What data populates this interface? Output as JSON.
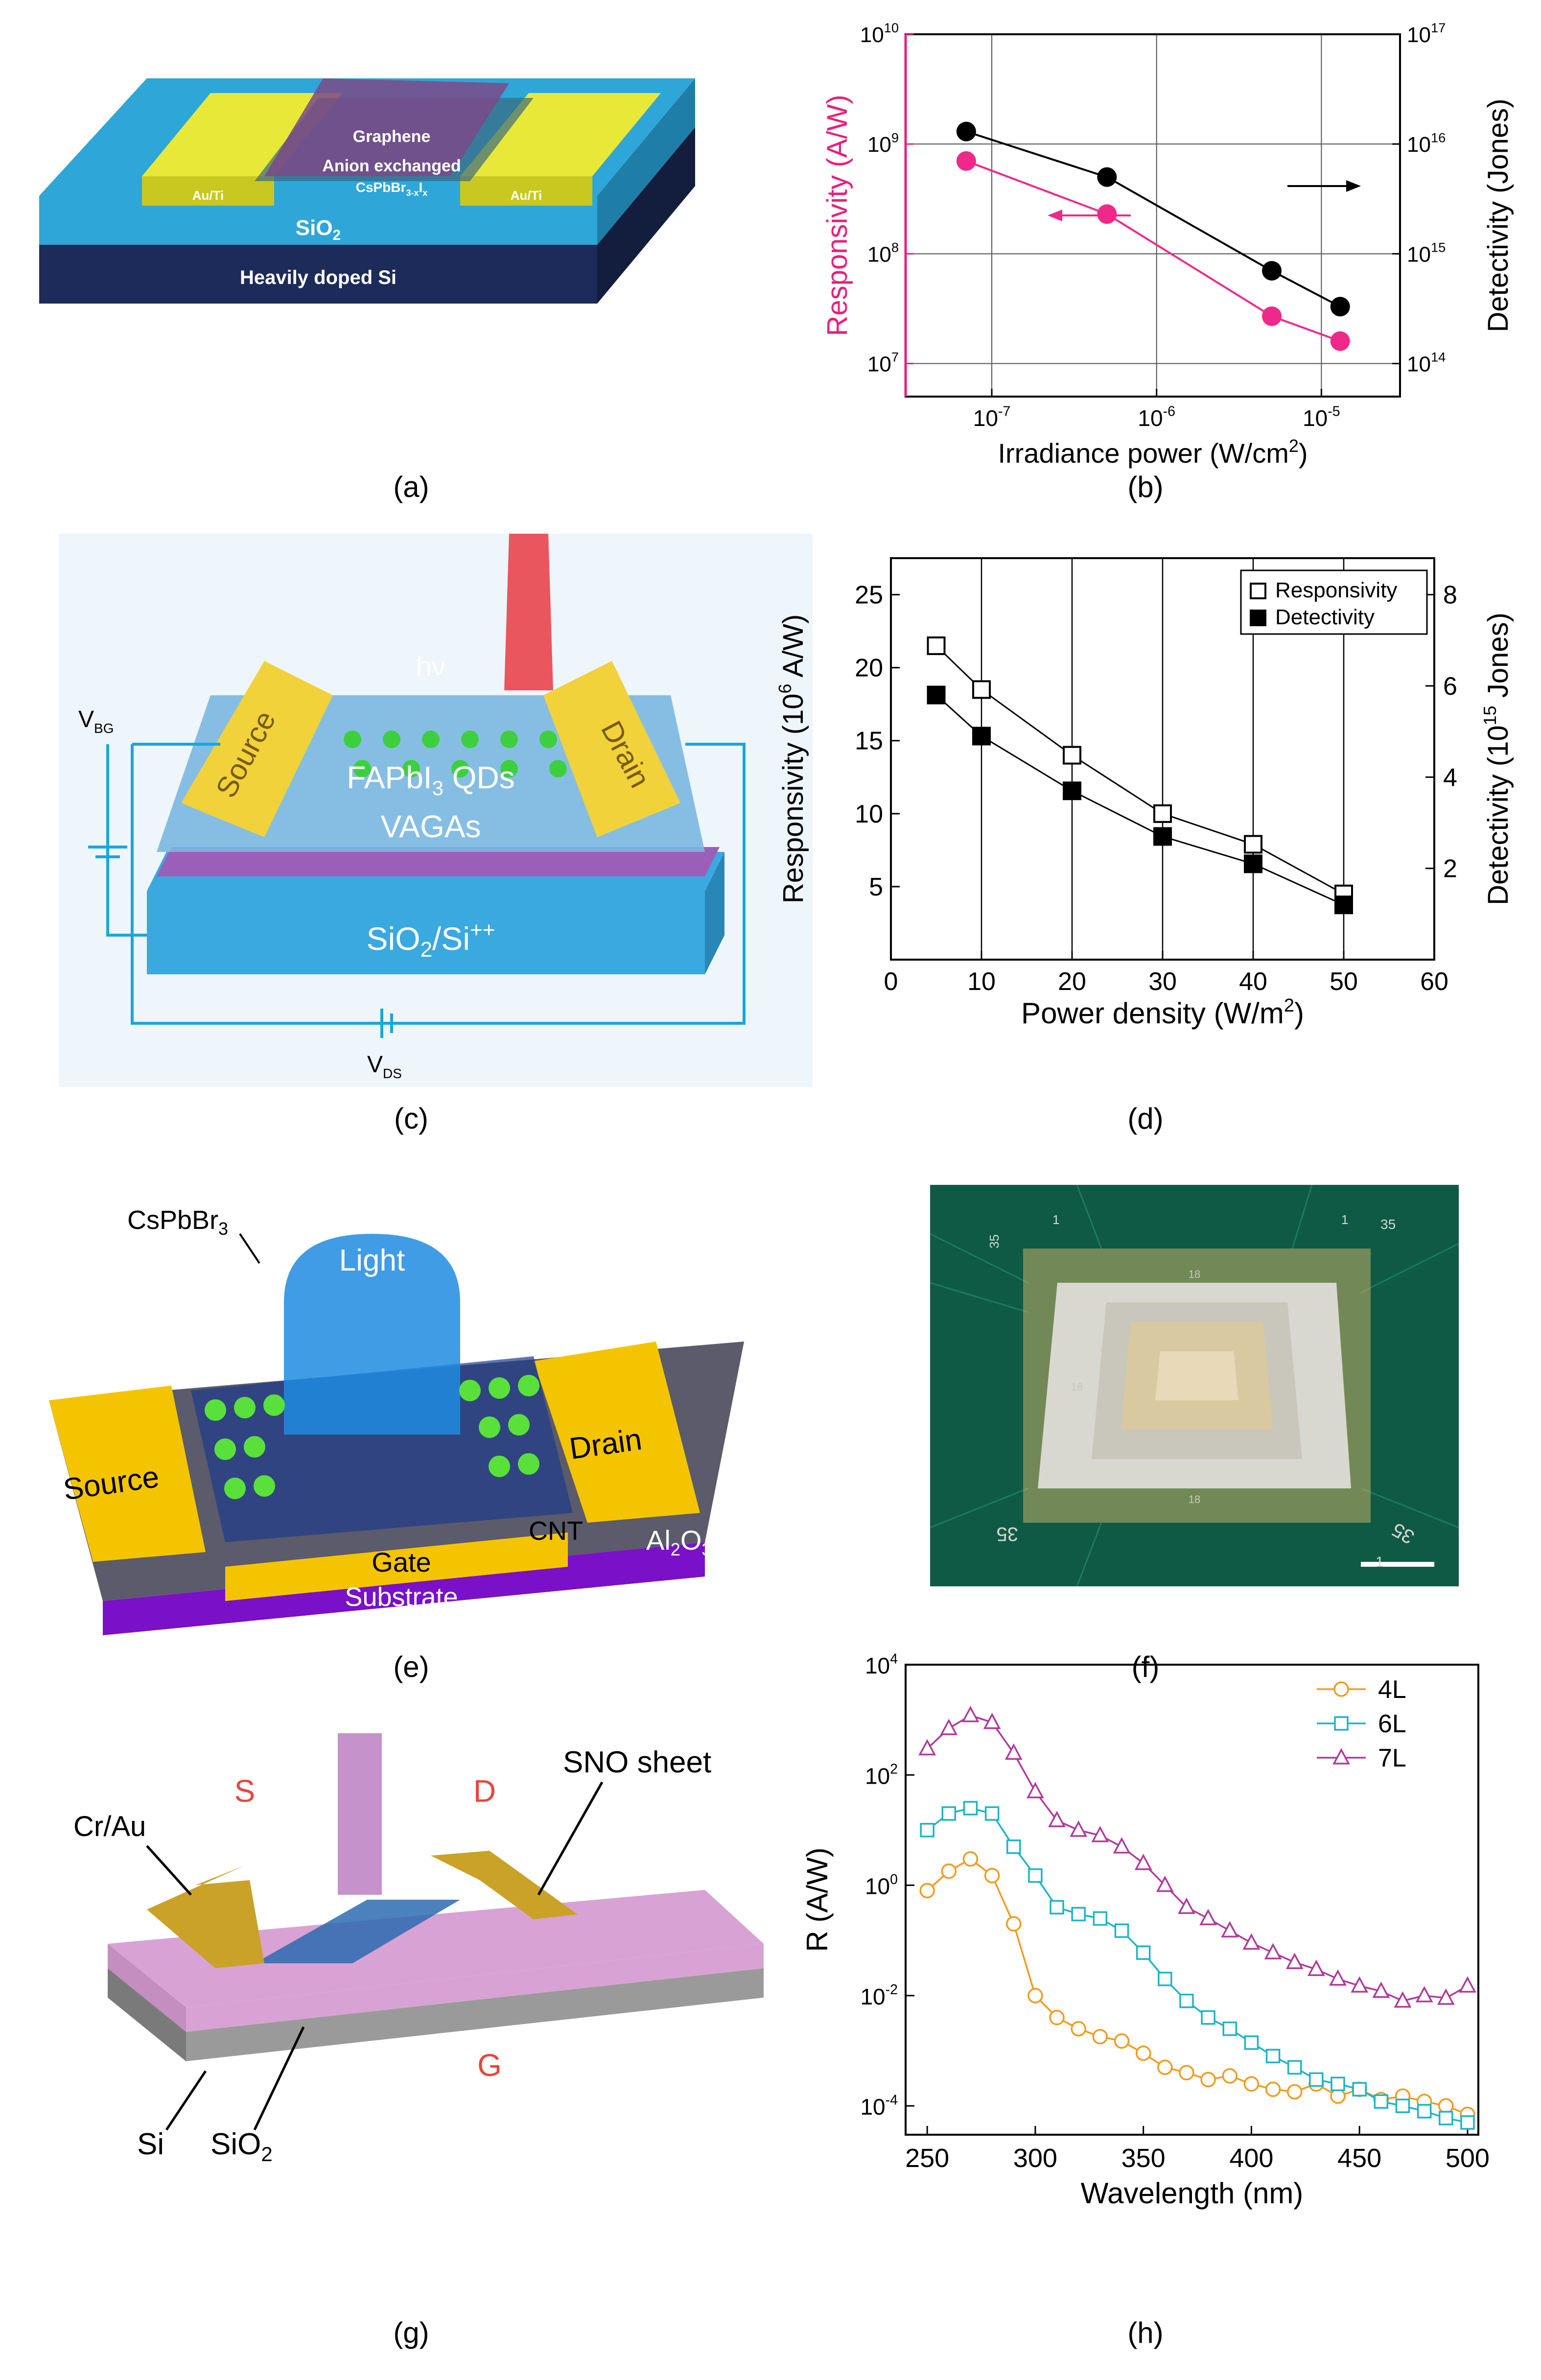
{
  "captions": {
    "a": "(a)",
    "b": "(b)",
    "c": "(c)",
    "d": "(d)",
    "e": "(e)",
    "f": "(f)",
    "g": "(g)",
    "h": "(h)"
  },
  "schematic_a": {
    "graphene": "Graphene",
    "anion_1": "Anion exchanged",
    "anion_2": "CsPbBr",
    "anion_sub": "3-x",
    "anion_i": "I",
    "anion_isub": "x",
    "au_left": "Au/Ti",
    "au_right": "Au/Ti",
    "sio2": "SiO",
    "sio2_sub": "2",
    "si": "Heavily doped Si",
    "colors": {
      "contact": "#e8e838",
      "oxide": "#2ea6d8",
      "substrate": "#1c2b5a",
      "crystal": "#7a4a88"
    }
  },
  "schematic_c": {
    "hv": "hν",
    "source": "Source",
    "drain": "Drain",
    "qds": "FAPbI",
    "qds_sub": "3",
    "qds_tail": " QDs",
    "vagas": "VAGAs",
    "substrate": "SiO",
    "substrate_sub": "2",
    "substrate_tail": "/Si",
    "substrate_sup": "++",
    "vbg": "V",
    "vbg_sub": "BG",
    "vds": "V",
    "vds_sub": "DS",
    "colors": {
      "contact": "#f2d23a",
      "substrate": "#3aa9e0",
      "beam": "#e8202a",
      "qd": "#3ecf3e",
      "wire": "#1aa7d8"
    }
  },
  "schematic_e": {
    "cspbbr3": "CsPbBr",
    "cspbbr3_sub": "3",
    "light": "Light",
    "source": "Source",
    "drain": "Drain",
    "cnt": "CNT",
    "al2o3": "Al",
    "al2o3_sub1": "2",
    "al2o3_o": "O",
    "al2o3_sub2": "3",
    "gate": "Gate",
    "substrate": "Substrate",
    "colors": {
      "contact": "#f5c400",
      "light": "#1f8be0",
      "substrate": "#7a10c8",
      "dielectric": "#5b5b6b",
      "dot": "#5ae03a"
    }
  },
  "photo_f": {
    "labels": {
      "tl_35": "35",
      "tl_1": "1",
      "tr_1": "1",
      "tr_35": "35",
      "bl_35": "35",
      "br_35": "35",
      "br_1": "1",
      "c1": "18",
      "c2": "18",
      "c3": "18"
    },
    "colors": {
      "board": "#0f5a45",
      "chip": "#d8d8d0",
      "die": "#d9c9a0",
      "pads": "#d6b86a"
    }
  },
  "schematic_g": {
    "s": "S",
    "d": "D",
    "g": "G",
    "cr_au": "Cr/Au",
    "sno": "SNO sheet",
    "si": "Si",
    "sio2": "SiO",
    "sio2_sub": "2",
    "colors": {
      "electrode": "#c9a227",
      "oxide": "#d9a2d4",
      "base": "#9a9a9a",
      "beam": "#a04aa8",
      "label_red": "#e8453c"
    }
  },
  "chart_data": [
    {
      "id": "b",
      "type": "line",
      "xscale": "log",
      "xlim": [
        3e-08,
        3e-05
      ],
      "xticks": [
        1e-07,
        1e-06,
        1e-05
      ],
      "xticklabels": [
        "10",
        "10",
        "10"
      ],
      "xtick_exps": [
        "-7",
        "-6",
        "-5"
      ],
      "xlabel": "Irradiance power (W/cm",
      "xlabel_sup": "2",
      "xlabel_tail": ")",
      "y_left": {
        "label": "Responsivity (A/W)",
        "scale": "log",
        "lim": [
          5000000.0,
          10000000000.0
        ],
        "ticks": [
          10000000.0,
          100000000.0,
          1000000000.0,
          10000000000.0
        ],
        "base": "10",
        "exps": [
          "7",
          "8",
          "9",
          "10"
        ],
        "color": "#e8207a"
      },
      "y_right": {
        "label": "Detectivity (Jones)",
        "scale": "log",
        "lim": [
          50000000000000.0,
          1e+17
        ],
        "ticks": [
          100000000000000.0,
          1000000000000000.0,
          1e+16,
          1e+17
        ],
        "base": "10",
        "exps": [
          "14",
          "15",
          "16",
          "17"
        ],
        "color": "#000000"
      },
      "grid": true,
      "series": [
        {
          "axis": "left",
          "color": "#f0288a",
          "x": [
            7e-08,
            5e-07,
            5e-06,
            1.3e-05
          ],
          "y": [
            700000000.0,
            230000000.0,
            27000000.0,
            16000000.0
          ]
        },
        {
          "axis": "right",
          "color": "#000000",
          "x": [
            7e-08,
            5e-07,
            5e-06,
            1.3e-05
          ],
          "y": [
            1.3e+16,
            5000000000000000.0,
            700000000000000.0,
            330000000000000.0
          ]
        }
      ]
    },
    {
      "id": "d",
      "type": "line",
      "xlim": [
        0,
        60
      ],
      "xticks": [
        0,
        10,
        20,
        30,
        40,
        50,
        60
      ],
      "xlabel": "Power density (W/m",
      "xlabel_sup": "2",
      "xlabel_tail": ")",
      "y_left": {
        "label_pre": "Responsivity (10",
        "label_sup": "6",
        "label_post": " A/W)",
        "lim": [
          0,
          27.5
        ],
        "ticks": [
          5,
          10,
          15,
          20,
          25
        ]
      },
      "y_right": {
        "label_pre": "Detectivity (10",
        "label_sup": "15",
        "label_post": " Jones)",
        "lim": [
          0,
          8.8
        ],
        "ticks": [
          2,
          4,
          6,
          8
        ]
      },
      "grid": "vertical",
      "legend_position": "top-right",
      "series": [
        {
          "name": "Responsivity",
          "marker": "open-square",
          "axis": "left",
          "x": [
            5,
            10,
            20,
            30,
            40,
            50
          ],
          "y": [
            21.5,
            18.5,
            14.0,
            10.0,
            7.9,
            4.5
          ]
        },
        {
          "name": "Detectivity",
          "marker": "filled-square",
          "axis": "right",
          "x": [
            5,
            10,
            20,
            30,
            40,
            50
          ],
          "y": [
            5.8,
            4.9,
            3.7,
            2.7,
            2.1,
            1.2
          ]
        }
      ]
    },
    {
      "id": "h",
      "type": "line",
      "xlim": [
        240,
        505
      ],
      "xticks": [
        250,
        300,
        350,
        400,
        450,
        500
      ],
      "xlabel": "Wavelength (nm)",
      "y_left": {
        "label": "R (A/W)",
        "scale": "log",
        "lim": [
          3e-05,
          10000.0
        ],
        "ticks": [
          0.0001,
          0.01,
          1,
          100.0,
          10000.0
        ],
        "base": "10",
        "exps": [
          "-4",
          "-2",
          "0",
          "2",
          "4"
        ]
      },
      "legend_position": "top-right",
      "series": [
        {
          "name": "4L",
          "marker": "circle",
          "color": "#f39a1c",
          "x": [
            250,
            260,
            270,
            280,
            290,
            300,
            310,
            320,
            330,
            340,
            350,
            360,
            370,
            380,
            390,
            400,
            410,
            420,
            430,
            440,
            450,
            460,
            470,
            480,
            490,
            500
          ],
          "y": [
            0.8,
            1.8,
            3.0,
            1.5,
            0.2,
            0.01,
            0.004,
            0.0025,
            0.0018,
            0.0015,
            0.0009,
            0.0005,
            0.0004,
            0.0003,
            0.00035,
            0.00025,
            0.0002,
            0.00018,
            0.00025,
            0.00015,
            0.0002,
            0.00013,
            0.00015,
            0.00012,
            0.0001,
            7e-05
          ]
        },
        {
          "name": "6L",
          "marker": "square",
          "color": "#1cb4c8",
          "x": [
            250,
            260,
            270,
            280,
            290,
            300,
            310,
            320,
            330,
            340,
            350,
            360,
            370,
            380,
            390,
            400,
            410,
            420,
            430,
            440,
            450,
            460,
            470,
            480,
            490,
            500
          ],
          "y": [
            10,
            20,
            25,
            20,
            5,
            1.5,
            0.4,
            0.3,
            0.25,
            0.15,
            0.06,
            0.02,
            0.008,
            0.004,
            0.0025,
            0.0014,
            0.0008,
            0.0005,
            0.0003,
            0.00025,
            0.0002,
            0.00012,
            0.0001,
            8e-05,
            6e-05,
            5e-05
          ]
        },
        {
          "name": "7L",
          "marker": "triangle",
          "color": "#b03a9a",
          "x": [
            250,
            260,
            270,
            280,
            290,
            300,
            310,
            320,
            330,
            340,
            350,
            360,
            370,
            380,
            390,
            400,
            410,
            420,
            430,
            440,
            450,
            460,
            470,
            480,
            490,
            500
          ],
          "y": [
            300,
            700,
            1200,
            900,
            250,
            50,
            15,
            10,
            8,
            5,
            2.5,
            1,
            0.4,
            0.25,
            0.15,
            0.09,
            0.06,
            0.04,
            0.03,
            0.02,
            0.015,
            0.012,
            0.008,
            0.01,
            0.009,
            0.015
          ]
        }
      ]
    }
  ]
}
